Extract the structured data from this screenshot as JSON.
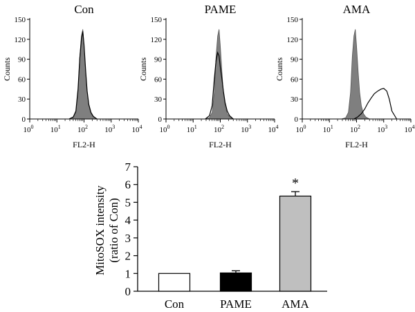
{
  "chart_data": [
    {
      "type": "area",
      "title": "Con",
      "xlabel": "FL2-H",
      "ylabel": "Counts",
      "xscale": "log",
      "xlim": [
        1,
        10000
      ],
      "ylim": [
        0,
        150
      ],
      "xticks": [
        {
          "value": 1,
          "base": "10",
          "exp": "0"
        },
        {
          "value": 10,
          "base": "10",
          "exp": "1"
        },
        {
          "value": 100,
          "base": "10",
          "exp": "2"
        },
        {
          "value": 1000,
          "base": "10",
          "exp": "3"
        },
        {
          "value": 10000,
          "base": "10",
          "exp": "4"
        }
      ],
      "yticks": [
        "0",
        "30",
        "60",
        "90",
        "120",
        "150"
      ],
      "series": [
        {
          "role": "filled-gray",
          "color": "#7f7f7f",
          "x": [
            28,
            40,
            50,
            60,
            70,
            80,
            90,
            100,
            115,
            130,
            150,
            180,
            220,
            300
          ],
          "y": [
            0,
            2,
            10,
            40,
            95,
            125,
            135,
            110,
            70,
            40,
            20,
            8,
            3,
            0
          ]
        },
        {
          "role": "outline",
          "color": "#000000",
          "x": [
            28,
            40,
            50,
            60,
            70,
            80,
            90,
            100,
            115,
            130,
            150,
            180,
            220,
            300
          ],
          "y": [
            0,
            3,
            12,
            45,
            92,
            120,
            132,
            112,
            72,
            42,
            22,
            10,
            4,
            0
          ]
        }
      ]
    },
    {
      "type": "area",
      "title": "PAME",
      "xlabel": "FL2-H",
      "ylabel": "Counts",
      "xscale": "log",
      "xlim": [
        1,
        10000
      ],
      "ylim": [
        0,
        150
      ],
      "xticks": [
        {
          "value": 1,
          "base": "10",
          "exp": "0"
        },
        {
          "value": 10,
          "base": "10",
          "exp": "1"
        },
        {
          "value": 100,
          "base": "10",
          "exp": "2"
        },
        {
          "value": 1000,
          "base": "10",
          "exp": "3"
        },
        {
          "value": 10000,
          "base": "10",
          "exp": "4"
        }
      ],
      "yticks": [
        "0",
        "30",
        "60",
        "90",
        "120",
        "150"
      ],
      "series": [
        {
          "role": "filled-gray",
          "color": "#7f7f7f",
          "x": [
            28,
            40,
            50,
            60,
            70,
            80,
            90,
            100,
            115,
            130,
            150,
            180,
            220,
            300
          ],
          "y": [
            0,
            2,
            10,
            40,
            95,
            125,
            135,
            110,
            70,
            40,
            20,
            8,
            3,
            0
          ]
        },
        {
          "role": "outline",
          "color": "#000000",
          "x": [
            28,
            40,
            50,
            60,
            70,
            80,
            90,
            100,
            115,
            130,
            150,
            180,
            220,
            300
          ],
          "y": [
            0,
            5,
            20,
            60,
            88,
            100,
            95,
            78,
            60,
            42,
            25,
            12,
            5,
            0
          ]
        }
      ]
    },
    {
      "type": "area",
      "title": "AMA",
      "xlabel": "FL2-H",
      "ylabel": "Counts",
      "xscale": "log",
      "xlim": [
        1,
        10000
      ],
      "ylim": [
        0,
        150
      ],
      "xticks": [
        {
          "value": 1,
          "base": "10",
          "exp": "0"
        },
        {
          "value": 10,
          "base": "10",
          "exp": "1"
        },
        {
          "value": 100,
          "base": "10",
          "exp": "2"
        },
        {
          "value": 1000,
          "base": "10",
          "exp": "3"
        },
        {
          "value": 10000,
          "base": "10",
          "exp": "4"
        }
      ],
      "yticks": [
        "0",
        "30",
        "60",
        "90",
        "120",
        "150"
      ],
      "series": [
        {
          "role": "filled-gray",
          "color": "#7f7f7f",
          "x": [
            28,
            40,
            50,
            60,
            70,
            80,
            90,
            100,
            115,
            130,
            150,
            180,
            220,
            300
          ],
          "y": [
            0,
            2,
            10,
            40,
            95,
            125,
            135,
            110,
            70,
            40,
            20,
            8,
            3,
            0
          ]
        },
        {
          "role": "outline",
          "color": "#000000",
          "x": [
            80,
            110,
            150,
            200,
            260,
            350,
            450,
            600,
            800,
            1000,
            1300,
            1600,
            2000,
            3000
          ],
          "y": [
            0,
            3,
            8,
            15,
            24,
            32,
            38,
            42,
            45,
            46,
            42,
            30,
            12,
            0
          ]
        }
      ]
    },
    {
      "type": "bar",
      "categories": [
        "Con",
        "PAME",
        "AMA"
      ],
      "values": [
        1.0,
        1.03,
        5.35
      ],
      "errors": [
        0.0,
        0.12,
        0.25
      ],
      "colors": [
        "#ffffff",
        "#000000",
        "#bfbfbf"
      ],
      "annotations": [
        {
          "category": "AMA",
          "text": "*"
        }
      ],
      "ylabel_lines": [
        "MitoSOX intensity",
        "(ratio of Con)"
      ],
      "ylim": [
        0,
        7
      ],
      "yticks": [
        "0",
        "1",
        "2",
        "3",
        "4",
        "5",
        "6",
        "7"
      ]
    }
  ]
}
